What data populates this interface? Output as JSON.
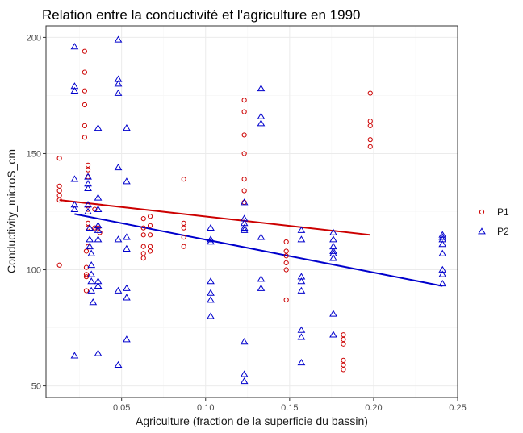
{
  "chart_data": {
    "type": "scatter",
    "title": "Relation entre la conductivité et l'agriculture en 1990",
    "xlabel": "Agriculture (fraction de la superficie du bassin)",
    "ylabel": "Conductivity_microS_cm",
    "xlim": [
      0.005,
      0.25
    ],
    "ylim": [
      45,
      205
    ],
    "xticks": [
      0.05,
      0.1,
      0.15,
      0.2,
      0.25
    ],
    "xtick_labels": [
      "0.05",
      "0.10",
      "0.15",
      "0.20",
      "0.25"
    ],
    "yticks": [
      50,
      100,
      150,
      200
    ],
    "ytick_labels": [
      "50",
      "100",
      "150",
      "200"
    ],
    "grid": true,
    "legend_position": "right",
    "series": [
      {
        "name": "P1",
        "color": "#cc0000",
        "marker": "circle",
        "points": [
          [
            0.013,
            148
          ],
          [
            0.013,
            136
          ],
          [
            0.013,
            134
          ],
          [
            0.013,
            132
          ],
          [
            0.013,
            130
          ],
          [
            0.013,
            102
          ],
          [
            0.028,
            194
          ],
          [
            0.028,
            185
          ],
          [
            0.028,
            177
          ],
          [
            0.028,
            171
          ],
          [
            0.028,
            162
          ],
          [
            0.028,
            157
          ],
          [
            0.03,
            145
          ],
          [
            0.03,
            143
          ],
          [
            0.03,
            140
          ],
          [
            0.03,
            128
          ],
          [
            0.03,
            126
          ],
          [
            0.03,
            120
          ],
          [
            0.03,
            118
          ],
          [
            0.03,
            110
          ],
          [
            0.029,
            108
          ],
          [
            0.029,
            101
          ],
          [
            0.029,
            98
          ],
          [
            0.029,
            97
          ],
          [
            0.029,
            91
          ],
          [
            0.034,
            126
          ],
          [
            0.034,
            118
          ],
          [
            0.036,
            118
          ],
          [
            0.037,
            116
          ],
          [
            0.063,
            122
          ],
          [
            0.063,
            118
          ],
          [
            0.063,
            115
          ],
          [
            0.063,
            110
          ],
          [
            0.063,
            107
          ],
          [
            0.063,
            105
          ],
          [
            0.067,
            123
          ],
          [
            0.067,
            119
          ],
          [
            0.067,
            115
          ],
          [
            0.067,
            110
          ],
          [
            0.067,
            108
          ],
          [
            0.087,
            139
          ],
          [
            0.087,
            120
          ],
          [
            0.087,
            118
          ],
          [
            0.087,
            114
          ],
          [
            0.087,
            110
          ],
          [
            0.123,
            173
          ],
          [
            0.123,
            168
          ],
          [
            0.123,
            158
          ],
          [
            0.123,
            150
          ],
          [
            0.123,
            139
          ],
          [
            0.123,
            134
          ],
          [
            0.123,
            129
          ],
          [
            0.148,
            112
          ],
          [
            0.148,
            108
          ],
          [
            0.148,
            106
          ],
          [
            0.148,
            103
          ],
          [
            0.148,
            100
          ],
          [
            0.148,
            87
          ],
          [
            0.182,
            72
          ],
          [
            0.182,
            70
          ],
          [
            0.182,
            68
          ],
          [
            0.182,
            61
          ],
          [
            0.182,
            59
          ],
          [
            0.182,
            57
          ],
          [
            0.198,
            176
          ],
          [
            0.198,
            164
          ],
          [
            0.198,
            162
          ],
          [
            0.198,
            156
          ],
          [
            0.198,
            153
          ]
        ],
        "fit": [
          [
            0.013,
            130
          ],
          [
            0.198,
            115
          ]
        ]
      },
      {
        "name": "P2",
        "color": "#0000cc",
        "marker": "triangle",
        "points": [
          [
            0.022,
            196
          ],
          [
            0.022,
            179
          ],
          [
            0.022,
            177
          ],
          [
            0.022,
            139
          ],
          [
            0.022,
            128
          ],
          [
            0.022,
            126
          ],
          [
            0.022,
            63
          ],
          [
            0.03,
            140
          ],
          [
            0.03,
            137
          ],
          [
            0.03,
            135
          ],
          [
            0.03,
            128
          ],
          [
            0.03,
            125
          ],
          [
            0.031,
            118
          ],
          [
            0.031,
            113
          ],
          [
            0.031,
            110
          ],
          [
            0.032,
            107
          ],
          [
            0.032,
            102
          ],
          [
            0.032,
            98
          ],
          [
            0.032,
            95
          ],
          [
            0.032,
            91
          ],
          [
            0.033,
            86
          ],
          [
            0.036,
            161
          ],
          [
            0.036,
            131
          ],
          [
            0.036,
            126
          ],
          [
            0.036,
            119
          ],
          [
            0.036,
            117
          ],
          [
            0.036,
            113
          ],
          [
            0.036,
            95
          ],
          [
            0.036,
            93
          ],
          [
            0.036,
            64
          ],
          [
            0.048,
            199
          ],
          [
            0.048,
            182
          ],
          [
            0.048,
            180
          ],
          [
            0.048,
            176
          ],
          [
            0.048,
            144
          ],
          [
            0.048,
            113
          ],
          [
            0.048,
            91
          ],
          [
            0.048,
            59
          ],
          [
            0.053,
            161
          ],
          [
            0.053,
            138
          ],
          [
            0.053,
            114
          ],
          [
            0.053,
            109
          ],
          [
            0.053,
            92
          ],
          [
            0.053,
            88
          ],
          [
            0.053,
            70
          ],
          [
            0.103,
            118
          ],
          [
            0.103,
            113
          ],
          [
            0.103,
            112
          ],
          [
            0.103,
            95
          ],
          [
            0.103,
            90
          ],
          [
            0.103,
            87
          ],
          [
            0.103,
            80
          ],
          [
            0.123,
            129
          ],
          [
            0.123,
            122
          ],
          [
            0.123,
            120
          ],
          [
            0.123,
            118
          ],
          [
            0.123,
            117
          ],
          [
            0.123,
            69
          ],
          [
            0.123,
            55
          ],
          [
            0.123,
            52
          ],
          [
            0.133,
            178
          ],
          [
            0.133,
            166
          ],
          [
            0.133,
            163
          ],
          [
            0.133,
            114
          ],
          [
            0.133,
            96
          ],
          [
            0.133,
            92
          ],
          [
            0.157,
            117
          ],
          [
            0.157,
            113
          ],
          [
            0.157,
            97
          ],
          [
            0.157,
            95
          ],
          [
            0.157,
            91
          ],
          [
            0.157,
            74
          ],
          [
            0.157,
            71
          ],
          [
            0.157,
            60
          ],
          [
            0.176,
            116
          ],
          [
            0.176,
            113
          ],
          [
            0.176,
            110
          ],
          [
            0.176,
            108
          ],
          [
            0.176,
            107
          ],
          [
            0.176,
            105
          ],
          [
            0.176,
            81
          ],
          [
            0.176,
            72
          ],
          [
            0.241,
            115
          ],
          [
            0.241,
            114
          ],
          [
            0.241,
            113
          ],
          [
            0.241,
            111
          ],
          [
            0.241,
            107
          ],
          [
            0.241,
            100
          ],
          [
            0.241,
            98
          ],
          [
            0.241,
            94
          ]
        ],
        "fit": [
          [
            0.022,
            124
          ],
          [
            0.241,
            93
          ]
        ]
      }
    ]
  }
}
